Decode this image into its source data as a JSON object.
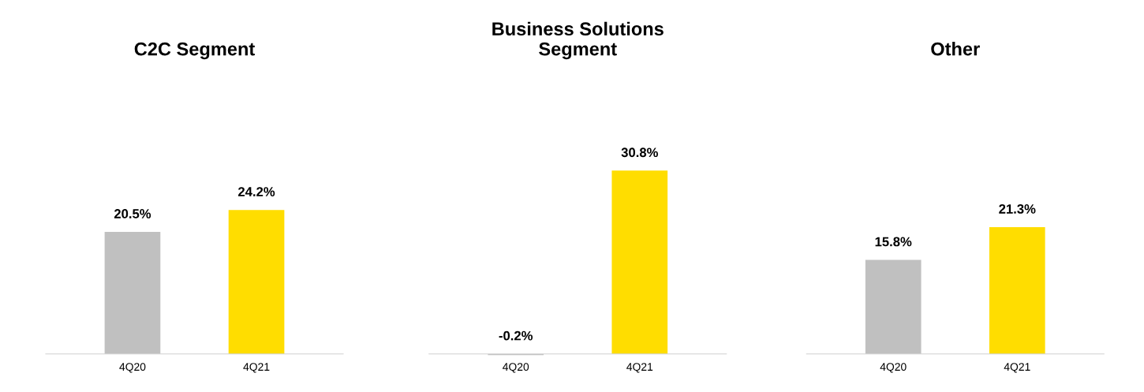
{
  "chart_data": [
    {
      "type": "bar",
      "title": "C2C Segment",
      "categories": [
        "4Q20",
        "4Q21"
      ],
      "values": [
        20.5,
        24.2
      ],
      "colors": [
        "#c0c0c0",
        "#ffdd00"
      ],
      "value_labels": [
        "20.5%",
        "24.2%"
      ]
    },
    {
      "type": "bar",
      "title": "Business Solutions\nSegment",
      "categories": [
        "4Q20",
        "4Q21"
      ],
      "values": [
        -0.2,
        30.8
      ],
      "colors": [
        "#c0c0c0",
        "#ffdd00"
      ],
      "value_labels": [
        "-0.2%",
        "30.8%"
      ]
    },
    {
      "type": "bar",
      "title": "Other",
      "categories": [
        "4Q20",
        "4Q21"
      ],
      "values": [
        15.8,
        21.3
      ],
      "colors": [
        "#c0c0c0",
        "#ffdd00"
      ],
      "value_labels": [
        "15.8%",
        "21.3%"
      ]
    }
  ]
}
